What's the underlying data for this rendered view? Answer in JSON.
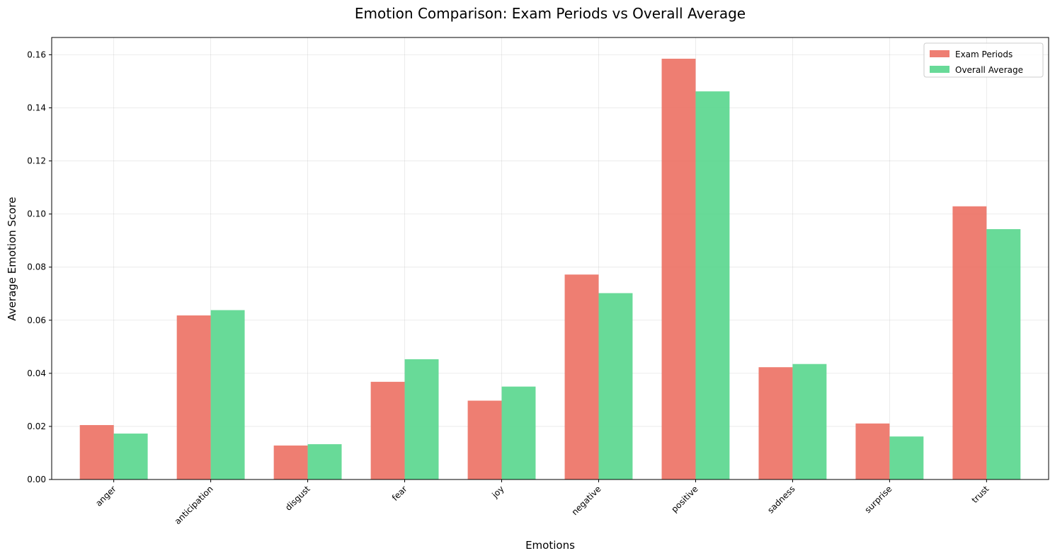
{
  "chart_data": {
    "type": "bar",
    "title": "Emotion Comparison: Exam Periods vs Overall Average",
    "xlabel": "Emotions",
    "ylabel": "Average Emotion Score",
    "categories": [
      "anger",
      "anticipation",
      "disgust",
      "fear",
      "joy",
      "negative",
      "positive",
      "sadness",
      "surprise",
      "trust"
    ],
    "series": [
      {
        "name": "Exam Periods",
        "color": "#ec7063",
        "values": [
          0.0205,
          0.0618,
          0.0128,
          0.0368,
          0.0297,
          0.0772,
          0.1585,
          0.0423,
          0.0211,
          0.1029
        ]
      },
      {
        "name": "Overall Average",
        "color": "#58d68d",
        "values": [
          0.0173,
          0.0638,
          0.0133,
          0.0453,
          0.035,
          0.0702,
          0.1462,
          0.0435,
          0.0162,
          0.0943
        ]
      }
    ],
    "ylim": [
      0,
      0.1665
    ],
    "yticks": [
      "0.00",
      "0.02",
      "0.04",
      "0.06",
      "0.08",
      "0.10",
      "0.12",
      "0.14",
      "0.16"
    ],
    "grid": true,
    "legend": "top-right"
  }
}
